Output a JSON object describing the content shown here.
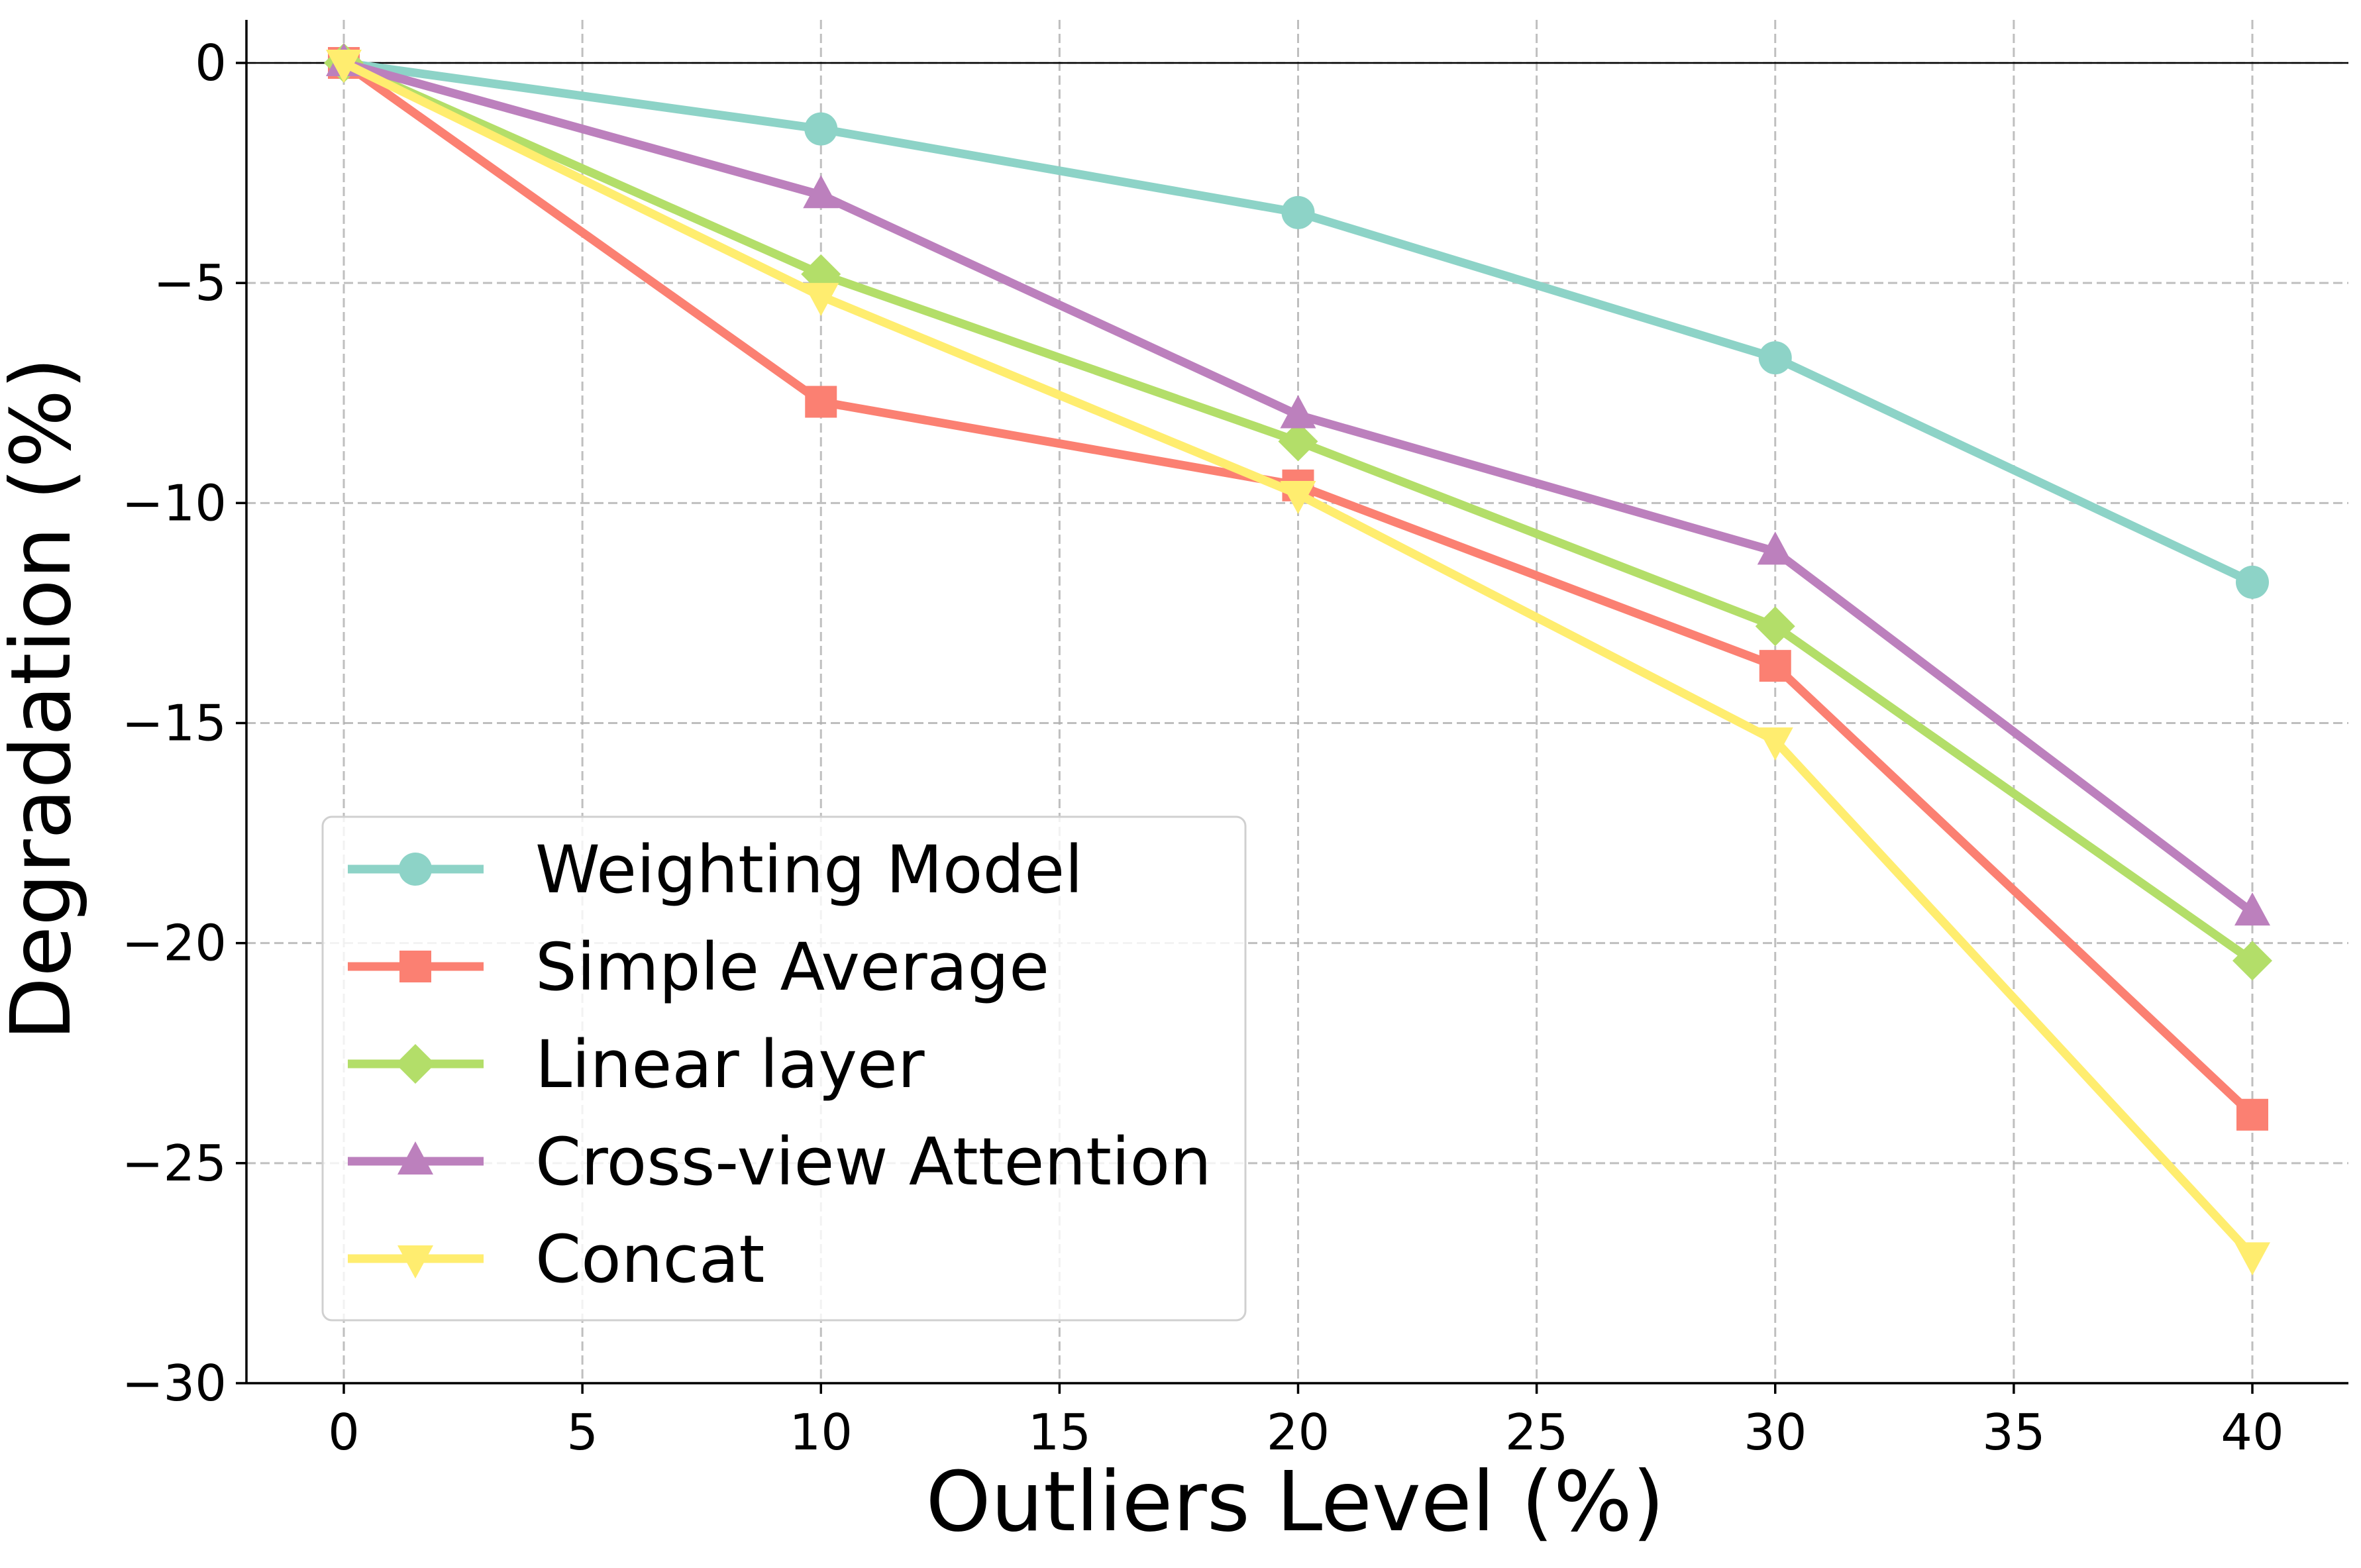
{
  "chart_data": {
    "type": "line",
    "title": "",
    "xlabel": "Outliers Level (%)",
    "ylabel": "Degradation (%)",
    "x": [
      0,
      10,
      20,
      30,
      40
    ],
    "xlim": [
      -2,
      42
    ],
    "ylim": [
      -30,
      1
    ],
    "x_ticks": [
      0,
      5,
      10,
      15,
      20,
      25,
      30,
      35,
      40
    ],
    "x_tick_labels": [
      "0",
      "5",
      "10",
      "15",
      "20",
      "25",
      "30",
      "35",
      "40"
    ],
    "y_ticks": [
      0,
      -5,
      -10,
      -15,
      -20,
      -25,
      -30
    ],
    "y_tick_labels": [
      "0",
      "−5",
      "−10",
      "−15",
      "−20",
      "−25",
      "−30"
    ],
    "grid": true,
    "zero_line": true,
    "legend_position": "lower-left",
    "series": [
      {
        "name": "Weighting Model",
        "marker": "circle",
        "color": "#8dd3c7",
        "values": [
          0,
          -1.5,
          -3.4,
          -6.7,
          -11.8
        ]
      },
      {
        "name": "Simple Average",
        "marker": "square",
        "color": "#fb8072",
        "values": [
          0,
          -7.7,
          -9.6,
          -13.7,
          -23.9
        ]
      },
      {
        "name": "Linear layer",
        "marker": "diamond",
        "color": "#b3de69",
        "values": [
          0,
          -4.8,
          -8.6,
          -12.8,
          -20.4
        ]
      },
      {
        "name": "Cross-view Attention",
        "marker": "triangle-up",
        "color": "#bc80bd",
        "values": [
          0,
          -3.0,
          -8.0,
          -11.1,
          -19.3
        ]
      },
      {
        "name": "Concat",
        "marker": "triangle-down",
        "color": "#ffed6f",
        "values": [
          0,
          -5.3,
          -9.8,
          -15.4,
          -27.1
        ]
      }
    ]
  }
}
